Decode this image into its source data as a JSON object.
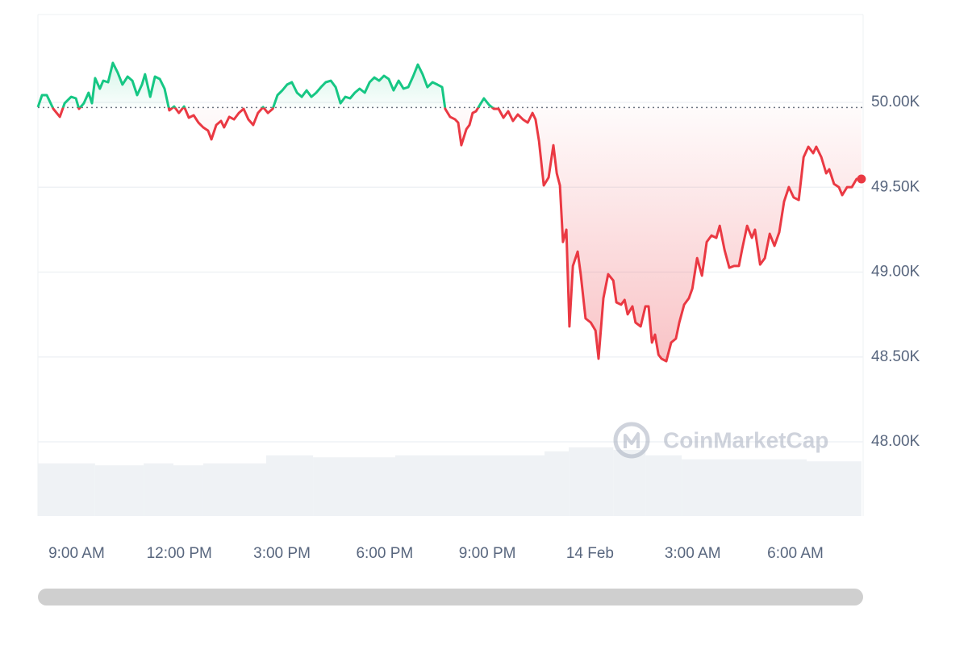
{
  "chart_data": {
    "type": "line",
    "watermark": "CoinMarketCap",
    "up_color": "#16c784",
    "down_color": "#ea3943",
    "baseline": 49970,
    "xlim": [
      7.87,
      31.98
    ],
    "ylim": [
      47563,
      50518
    ],
    "xticks": [
      {
        "value": 9,
        "label": "9:00 AM"
      },
      {
        "value": 12,
        "label": "12:00 PM"
      },
      {
        "value": 15,
        "label": "3:00 PM"
      },
      {
        "value": 18,
        "label": "6:00 PM"
      },
      {
        "value": 21,
        "label": "9:00 PM"
      },
      {
        "value": 24,
        "label": "14 Feb"
      },
      {
        "value": 27,
        "label": "3:00 AM"
      },
      {
        "value": 30,
        "label": "6:00 AM"
      }
    ],
    "yticks": [
      {
        "value": 48000,
        "label": "48.00K"
      },
      {
        "value": 48500,
        "label": "48.50K"
      },
      {
        "value": 49000,
        "label": "49.00K"
      },
      {
        "value": 49500,
        "label": "49.50K"
      },
      {
        "value": 50000,
        "label": "50.00K"
      }
    ],
    "grid": true,
    "x": [
      7.87,
      7.99,
      8.13,
      8.32,
      8.51,
      8.65,
      8.84,
      8.98,
      9.07,
      9.21,
      9.35,
      9.45,
      9.54,
      9.68,
      9.78,
      9.92,
      10.06,
      10.2,
      10.34,
      10.49,
      10.63,
      10.77,
      10.91,
      11.0,
      11.15,
      11.29,
      11.43,
      11.57,
      11.71,
      11.85,
      11.99,
      12.14,
      12.28,
      12.42,
      12.56,
      12.7,
      12.84,
      12.94,
      13.08,
      13.22,
      13.31,
      13.46,
      13.6,
      13.74,
      13.88,
      14.02,
      14.16,
      14.3,
      14.45,
      14.59,
      14.73,
      14.87,
      15.01,
      15.15,
      15.29,
      15.44,
      15.58,
      15.72,
      15.86,
      16.0,
      16.14,
      16.28,
      16.43,
      16.57,
      16.71,
      16.85,
      16.99,
      17.13,
      17.27,
      17.42,
      17.56,
      17.7,
      17.84,
      17.98,
      18.12,
      18.26,
      18.41,
      18.55,
      18.69,
      18.83,
      18.97,
      19.11,
      19.25,
      19.4,
      19.54,
      19.68,
      19.77,
      19.91,
      20.06,
      20.15,
      20.24,
      20.39,
      20.48,
      20.57,
      20.67,
      20.81,
      20.9,
      21.05,
      21.19,
      21.33,
      21.47,
      21.61,
      21.75,
      21.89,
      22.04,
      22.18,
      22.32,
      22.41,
      22.51,
      22.65,
      22.79,
      22.93,
      23.03,
      23.12,
      23.21,
      23.31,
      23.4,
      23.5,
      23.64,
      23.73,
      23.87,
      24.02,
      24.16,
      24.25,
      24.39,
      24.53,
      24.68,
      24.77,
      24.91,
      25.01,
      25.1,
      25.24,
      25.33,
      25.48,
      25.62,
      25.71,
      25.81,
      25.9,
      26.0,
      26.09,
      26.23,
      26.37,
      26.51,
      26.61,
      26.75,
      26.89,
      26.99,
      27.13,
      27.27,
      27.41,
      27.55,
      27.69,
      27.79,
      27.93,
      28.07,
      28.21,
      28.35,
      28.45,
      28.59,
      28.73,
      28.82,
      28.97,
      29.11,
      29.25,
      29.39,
      29.53,
      29.67,
      29.81,
      29.95,
      30.1,
      30.24,
      30.38,
      30.52,
      30.61,
      30.76,
      30.9,
      30.99,
      31.13,
      31.27,
      31.37,
      31.51,
      31.65,
      31.79,
      31.93
    ],
    "values": [
      49972,
      50043,
      50043,
      49962,
      49915,
      49995,
      50033,
      50024,
      49962,
      49995,
      50057,
      49995,
      50143,
      50081,
      50128,
      50119,
      50233,
      50176,
      50105,
      50152,
      50128,
      50043,
      50105,
      50166,
      50033,
      50152,
      50138,
      50081,
      49953,
      49976,
      49938,
      49976,
      49910,
      49924,
      49881,
      49853,
      49834,
      49782,
      49867,
      49891,
      49853,
      49915,
      49900,
      49938,
      49962,
      49900,
      49867,
      49938,
      49972,
      49938,
      49962,
      50043,
      50071,
      50105,
      50119,
      50057,
      50033,
      50071,
      50033,
      50057,
      50090,
      50119,
      50128,
      50090,
      49995,
      50033,
      50024,
      50057,
      50081,
      50057,
      50119,
      50147,
      50128,
      50157,
      50138,
      50071,
      50128,
      50081,
      50090,
      50152,
      50223,
      50166,
      50090,
      50119,
      50105,
      50090,
      49962,
      49915,
      49900,
      49881,
      49748,
      49843,
      49867,
      49938,
      49948,
      49995,
      50024,
      49986,
      49962,
      49962,
      49910,
      49948,
      49891,
      49929,
      49900,
      49881,
      49938,
      49900,
      49772,
      49511,
      49558,
      49748,
      49582,
      49511,
      49178,
      49250,
      48680,
      49036,
      49121,
      48988,
      48727,
      48703,
      48656,
      48490,
      48846,
      48988,
      48950,
      48822,
      48808,
      48836,
      48751,
      48798,
      48703,
      48680,
      48798,
      48798,
      48585,
      48632,
      48513,
      48490,
      48475,
      48585,
      48608,
      48703,
      48808,
      48846,
      48903,
      49083,
      48979,
      49178,
      49216,
      49202,
      49273,
      49131,
      49026,
      49036,
      49036,
      49140,
      49273,
      49202,
      49250,
      49045,
      49083,
      49226,
      49155,
      49235,
      49416,
      49501,
      49440,
      49425,
      49677,
      49739,
      49701,
      49739,
      49677,
      49582,
      49606,
      49520,
      49501,
      49454,
      49501,
      49501,
      49549,
      49549
    ],
    "volume": {
      "color": "#eff2f5",
      "y2lim": [
        0,
        100
      ],
      "bins": [
        7.87,
        9.54,
        10.96,
        11.83,
        12.7,
        14.54,
        15.91,
        18.31,
        22.67,
        23.38,
        24.68,
        25.62,
        26.68,
        30.33,
        31.93
      ],
      "values": [
        10.5,
        10.1,
        10.5,
        10.1,
        10.5,
        12.1,
        11.7,
        12.1,
        12.9,
        13.7,
        13.2,
        12.1,
        11.3,
        10.9
      ]
    }
  }
}
